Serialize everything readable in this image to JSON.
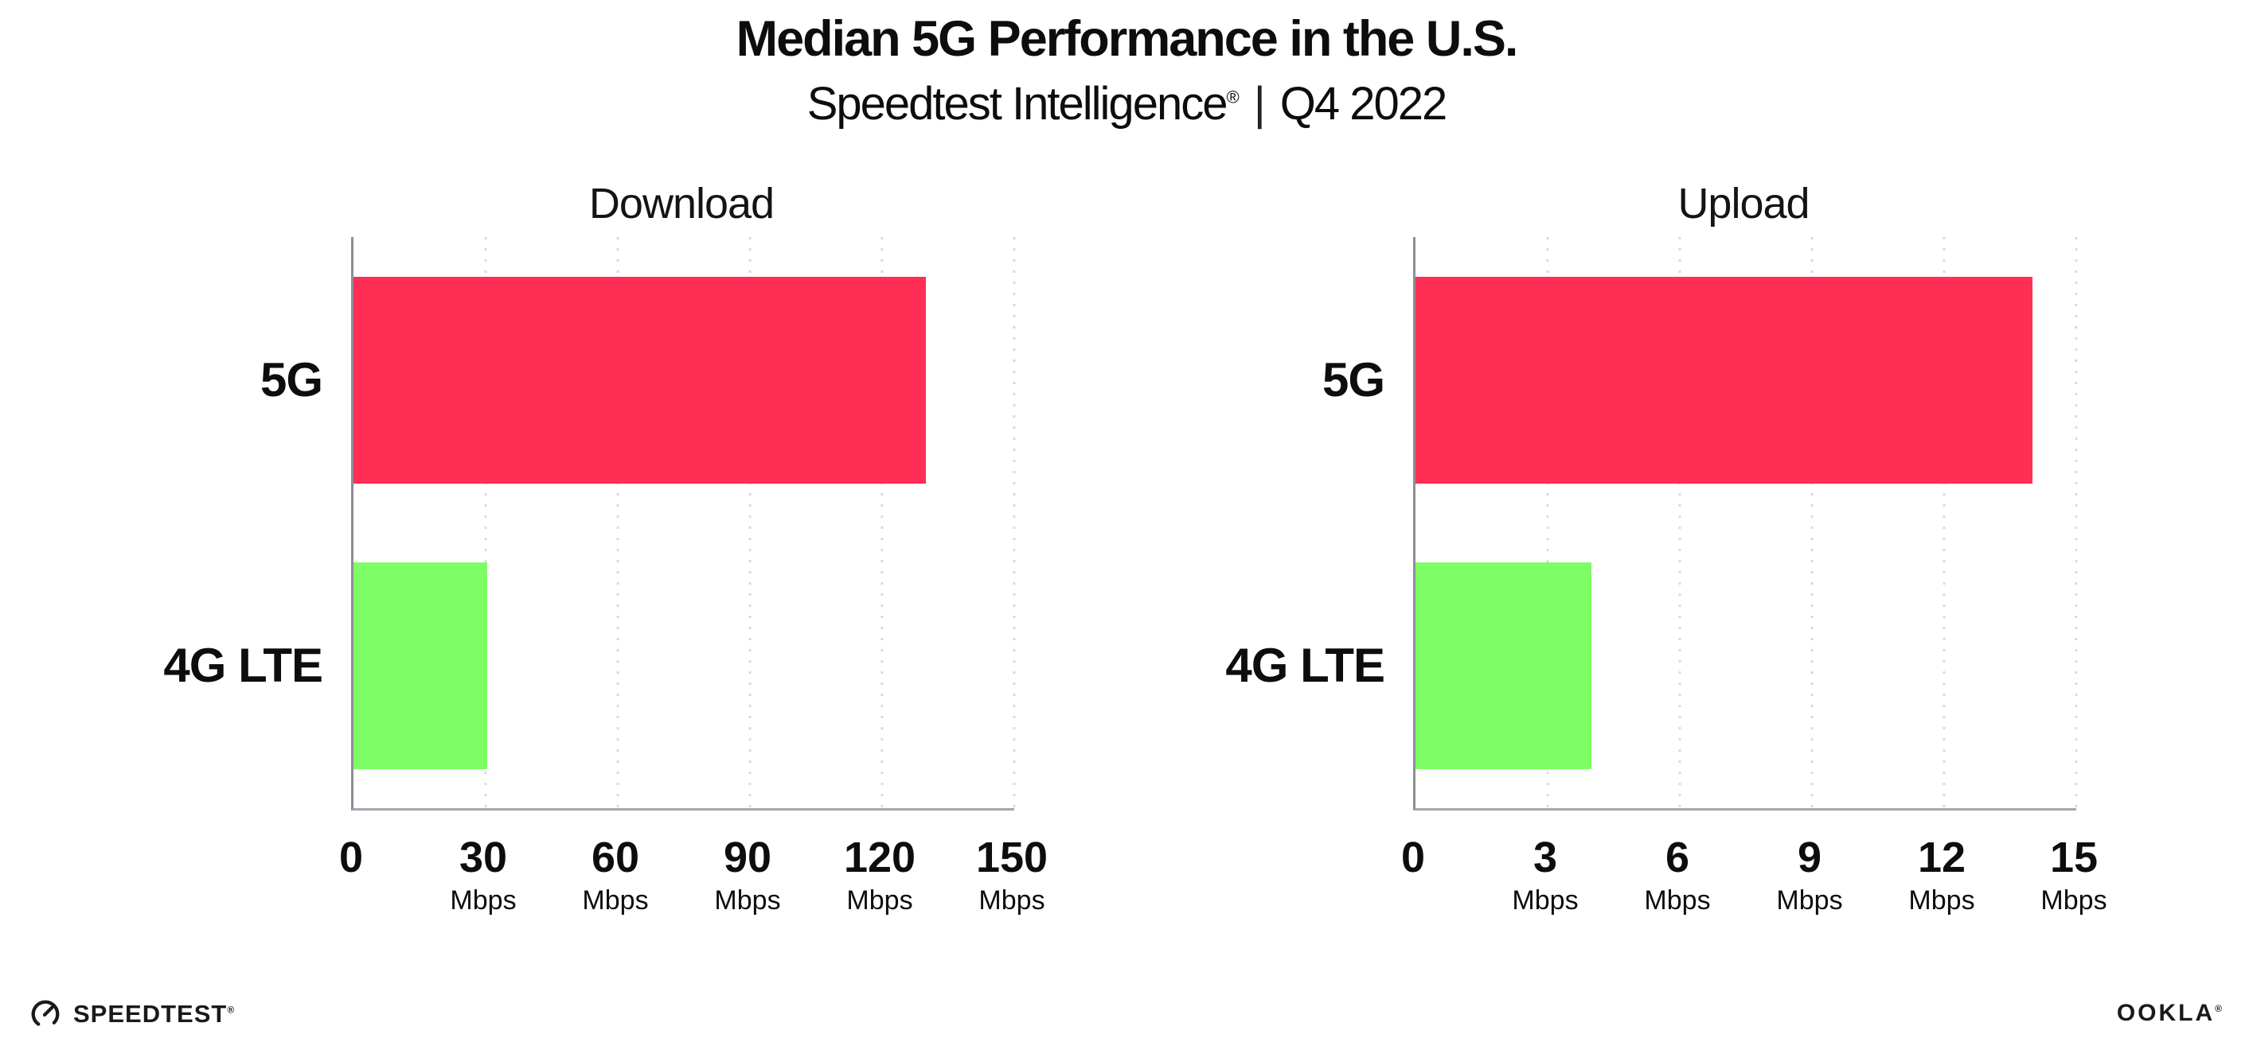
{
  "header": {
    "title": "Median 5G Performance in the U.S.",
    "subtitle_brand": "Speedtest Intelligence",
    "subtitle_reg": "®",
    "subtitle_separator": "|",
    "subtitle_period": "Q4 2022"
  },
  "chart_data": [
    {
      "type": "bar",
      "orientation": "horizontal",
      "title": "Download",
      "categories": [
        "5G",
        "4G LTE"
      ],
      "values": [
        130,
        30.3
      ],
      "unit": "Mbps",
      "xlabel": "",
      "ylabel": "",
      "xlim": [
        0,
        150
      ],
      "xticks": [
        0,
        30,
        60,
        90,
        120,
        150
      ],
      "bar_colors": [
        "#FF2E55",
        "#7EFD65"
      ],
      "grid": "dotted-vertical-light"
    },
    {
      "type": "bar",
      "orientation": "horizontal",
      "title": "Upload",
      "categories": [
        "5G",
        "4G LTE"
      ],
      "values": [
        14,
        4
      ],
      "unit": "Mbps",
      "xlabel": "",
      "ylabel": "",
      "xlim": [
        0,
        15
      ],
      "xticks": [
        0,
        3,
        6,
        9,
        12,
        15
      ],
      "bar_colors": [
        "#FF2E55",
        "#7EFD65"
      ],
      "grid": "dotted-vertical-light"
    }
  ],
  "footer": {
    "speedtest_logo_text": "SPEEDTEST",
    "speedtest_reg": "®",
    "ookla_logo_text": "OOKLA",
    "ookla_reg": "®"
  },
  "colors": {
    "bar_5g": "#FF2E55",
    "bar_4g_lte": "#7EFD65",
    "axis": "#a6a6ae",
    "gridline": "#d9d9e4",
    "text": "#0d0d0d"
  }
}
